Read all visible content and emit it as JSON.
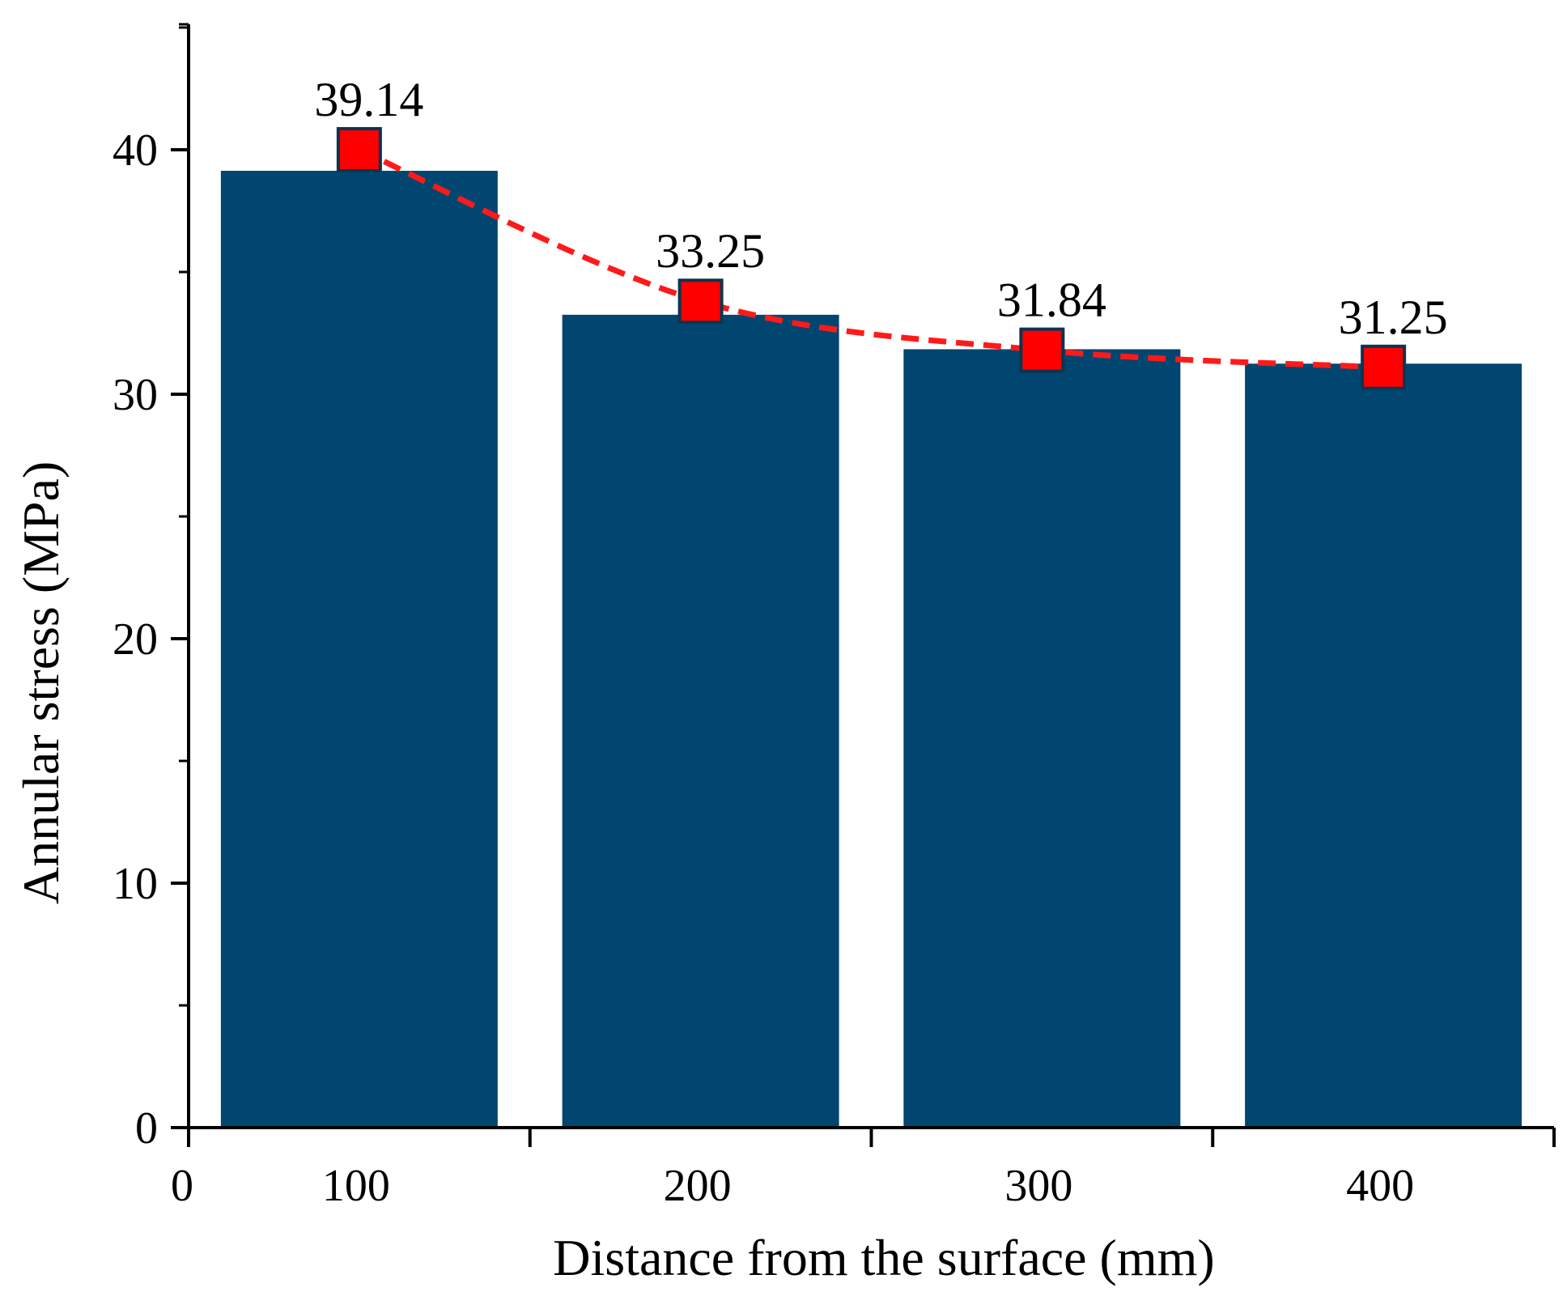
{
  "chart_data": {
    "type": "bar",
    "title": "",
    "xlabel": "Distance from the surface (mm)",
    "ylabel": "Annular stress (MPa)",
    "categories": [
      "100",
      "200",
      "300",
      "400"
    ],
    "values": [
      39.14,
      33.25,
      31.84,
      31.25
    ],
    "data_labels": [
      "39.14",
      "33.25",
      "31.84",
      "31.25"
    ],
    "line_series": {
      "name": "trend",
      "values": [
        40.0,
        33.8,
        31.8,
        31.1
      ],
      "style": "dashed",
      "marker": "square"
    },
    "x_origin_label": "0",
    "yticks": [
      0,
      10,
      20,
      30,
      40
    ],
    "ytick_labels": [
      "0",
      "10",
      "20",
      "30",
      "40"
    ],
    "ylim": [
      0,
      45
    ],
    "grid": false,
    "colors": {
      "bar": "#004670",
      "line": "#ff1a1a",
      "marker_fill": "#ff0000",
      "marker_edge": "#0b3550",
      "axis": "#000000"
    }
  }
}
